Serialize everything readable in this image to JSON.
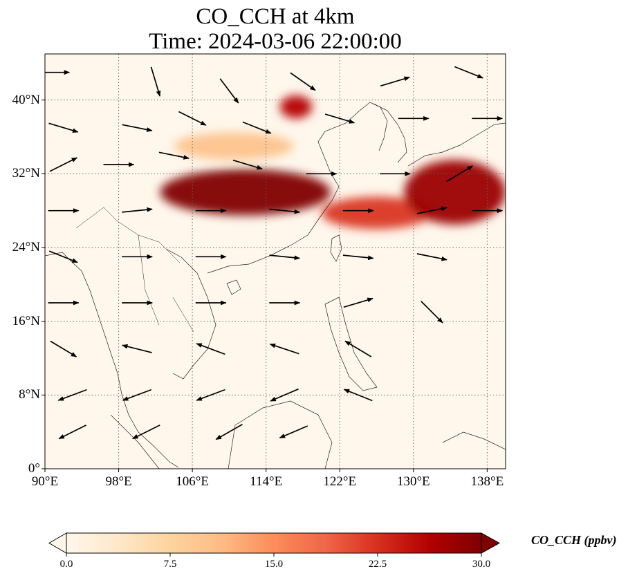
{
  "title": {
    "line1": "CO_CCH at 4km",
    "line2": "Time: 2024-03-06 22:00:00"
  },
  "map": {
    "lat_range": [
      0,
      45
    ],
    "lon_range": [
      90,
      140
    ],
    "lat_ticks": [
      {
        "value": 0,
        "label": "0°"
      },
      {
        "value": 8,
        "label": "8°N"
      },
      {
        "value": 16,
        "label": "16°N"
      },
      {
        "value": 24,
        "label": "24°N"
      },
      {
        "value": 32,
        "label": "32°N"
      },
      {
        "value": 40,
        "label": "40°N"
      }
    ],
    "lon_ticks": [
      {
        "value": 90,
        "label": "90°E"
      },
      {
        "value": 98,
        "label": "98°E"
      },
      {
        "value": 106,
        "label": "106°E"
      },
      {
        "value": 114,
        "label": "114°E"
      },
      {
        "value": 122,
        "label": "122°E"
      },
      {
        "value": 130,
        "label": "130°E"
      },
      {
        "value": 138,
        "label": "138°E"
      }
    ],
    "gridlines": "dotted"
  },
  "colorbar": {
    "label": "CO_CCH (ppbv)",
    "colormap": "OrRd",
    "colors": [
      "#fff7ec",
      "#fee8c8",
      "#fdd49e",
      "#fdbb84",
      "#fc8d59",
      "#ef6548",
      "#d7301f",
      "#b30000",
      "#7f0000"
    ],
    "range": [
      0,
      30
    ],
    "extend": "both",
    "ticks": [
      {
        "value": 0,
        "label": "0.0"
      },
      {
        "value": 7.5,
        "label": "7.5"
      },
      {
        "value": 15,
        "label": "15.0"
      },
      {
        "value": 22.5,
        "label": "22.5"
      },
      {
        "value": 30,
        "label": "30.0"
      }
    ]
  },
  "chart_data": {
    "type": "heatmap",
    "variable": "CO_CCH",
    "level": "4km",
    "plume_regions": [
      {
        "lon_range": [
          102.5,
          121
        ],
        "lat_range": [
          27.5,
          32.5
        ],
        "value": 30
      },
      {
        "lon_range": [
          120,
          132
        ],
        "lat_range": [
          26,
          29.5
        ],
        "value": 22
      },
      {
        "lon_range": [
          129,
          140
        ],
        "lat_range": [
          26.5,
          33.5
        ],
        "value": 28
      },
      {
        "lon_range": [
          104,
          117
        ],
        "lat_range": [
          33.5,
          36.5
        ],
        "value": 10
      },
      {
        "lon_range": [
          115.5,
          119
        ],
        "lat_range": [
          38,
          40.5
        ],
        "value": 26
      }
    ],
    "wind_vectors": [
      {
        "lon": 91,
        "lat": 43,
        "u": 1,
        "v": 0
      },
      {
        "lon": 102,
        "lat": 42,
        "u": 0.3,
        "v": -1
      },
      {
        "lon": 110,
        "lat": 41,
        "u": 0.6,
        "v": -0.8
      },
      {
        "lon": 118,
        "lat": 42,
        "u": 1,
        "v": -0.7
      },
      {
        "lon": 128,
        "lat": 42,
        "u": 1,
        "v": 0.3
      },
      {
        "lon": 136,
        "lat": 43,
        "u": 1,
        "v": -0.4
      },
      {
        "lon": 92,
        "lat": 37,
        "u": 1,
        "v": -0.3
      },
      {
        "lon": 100,
        "lat": 37,
        "u": 1,
        "v": -0.2
      },
      {
        "lon": 106,
        "lat": 38,
        "u": 1,
        "v": -0.5
      },
      {
        "lon": 113,
        "lat": 37,
        "u": 1,
        "v": -0.4
      },
      {
        "lon": 122,
        "lat": 38,
        "u": 1,
        "v": -0.3
      },
      {
        "lon": 130,
        "lat": 38,
        "u": 1,
        "v": 0
      },
      {
        "lon": 138,
        "lat": 38,
        "u": 1,
        "v": 0
      },
      {
        "lon": 92,
        "lat": 33,
        "u": 1,
        "v": 0.5
      },
      {
        "lon": 98,
        "lat": 33,
        "u": 1,
        "v": 0
      },
      {
        "lon": 104,
        "lat": 34,
        "u": 1,
        "v": -0.2
      },
      {
        "lon": 112,
        "lat": 33,
        "u": 1,
        "v": -0.3
      },
      {
        "lon": 120,
        "lat": 32,
        "u": 1,
        "v": 0
      },
      {
        "lon": 128,
        "lat": 32,
        "u": 1,
        "v": 0
      },
      {
        "lon": 135,
        "lat": 32,
        "u": 1,
        "v": 0.6
      },
      {
        "lon": 92,
        "lat": 28,
        "u": 1,
        "v": 0
      },
      {
        "lon": 100,
        "lat": 28,
        "u": 1,
        "v": 0.1
      },
      {
        "lon": 108,
        "lat": 28,
        "u": 1,
        "v": 0
      },
      {
        "lon": 116,
        "lat": 28,
        "u": 1,
        "v": -0.1
      },
      {
        "lon": 124,
        "lat": 28,
        "u": 1,
        "v": 0
      },
      {
        "lon": 132,
        "lat": 28,
        "u": 1,
        "v": 0.2
      },
      {
        "lon": 138,
        "lat": 28,
        "u": 1,
        "v": 0
      },
      {
        "lon": 92,
        "lat": 23,
        "u": 1,
        "v": -0.4
      },
      {
        "lon": 100,
        "lat": 23,
        "u": 1,
        "v": 0
      },
      {
        "lon": 108,
        "lat": 23,
        "u": 1,
        "v": 0
      },
      {
        "lon": 116,
        "lat": 23,
        "u": 1,
        "v": -0.1
      },
      {
        "lon": 124,
        "lat": 23,
        "u": 1,
        "v": -0.1
      },
      {
        "lon": 132,
        "lat": 23,
        "u": 1,
        "v": -0.2
      },
      {
        "lon": 92,
        "lat": 18,
        "u": 1,
        "v": 0
      },
      {
        "lon": 100,
        "lat": 18,
        "u": 1,
        "v": 0
      },
      {
        "lon": 108,
        "lat": 18,
        "u": 1,
        "v": 0
      },
      {
        "lon": 116,
        "lat": 18,
        "u": 1,
        "v": 0
      },
      {
        "lon": 124,
        "lat": 18,
        "u": 1,
        "v": 0.3
      },
      {
        "lon": 132,
        "lat": 17,
        "u": 0.6,
        "v": -0.6
      },
      {
        "lon": 92,
        "lat": 13,
        "u": 0.5,
        "v": -0.3
      },
      {
        "lon": 100,
        "lat": 13,
        "u": -0.8,
        "v": 0.2
      },
      {
        "lon": 108,
        "lat": 13,
        "u": -0.8,
        "v": 0.3
      },
      {
        "lon": 116,
        "lat": 13,
        "u": -0.6,
        "v": 0.2
      },
      {
        "lon": 124,
        "lat": 13,
        "u": -0.5,
        "v": 0.3
      },
      {
        "lon": 93,
        "lat": 8,
        "u": -0.8,
        "v": -0.3
      },
      {
        "lon": 100,
        "lat": 8,
        "u": -0.8,
        "v": -0.3
      },
      {
        "lon": 108,
        "lat": 8,
        "u": -0.8,
        "v": -0.3
      },
      {
        "lon": 116,
        "lat": 8,
        "u": -0.7,
        "v": -0.3
      },
      {
        "lon": 124,
        "lat": 8,
        "u": -0.5,
        "v": 0.2
      },
      {
        "lon": 93,
        "lat": 4,
        "u": -0.8,
        "v": -0.4
      },
      {
        "lon": 101,
        "lat": 4,
        "u": -0.8,
        "v": -0.4
      },
      {
        "lon": 110,
        "lat": 4,
        "u": -0.7,
        "v": -0.4
      },
      {
        "lon": 117,
        "lat": 4,
        "u": -0.7,
        "v": -0.3
      }
    ]
  }
}
